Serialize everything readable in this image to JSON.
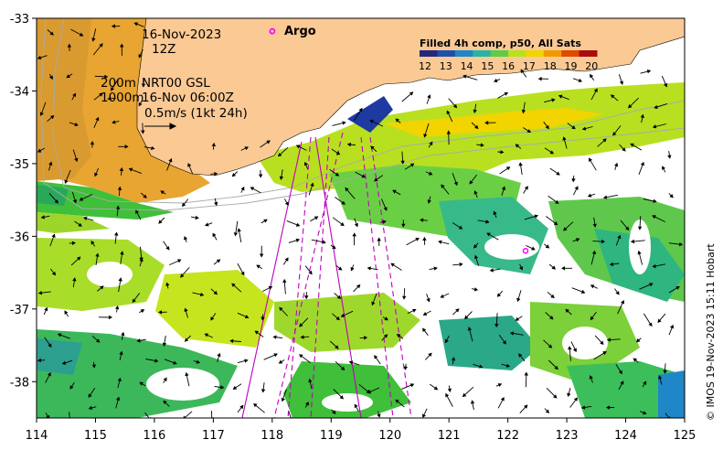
{
  "annotations": {
    "date": "16-Nov-2023",
    "time": "12Z",
    "depth_200": "200m",
    "depth_1000": "1000m",
    "product": "NRT00 GSL",
    "product_time": "16-Nov 06:00Z",
    "vector_scale": "0.5m/s (1kt 24h)"
  },
  "argo_label": "Argo",
  "credit": "© IMOS 19-Nov-2023 15:11 Hobart",
  "colorbar": {
    "title": "Filled 4h comp, p50, All Sats",
    "ticks": [
      "12",
      "13",
      "14",
      "15",
      "16",
      "17",
      "18",
      "19",
      "20"
    ],
    "colors": [
      "#23287d",
      "#1e50a8",
      "#1f86c8",
      "#27b4a6",
      "#5fcb48",
      "#b7e11d",
      "#f2d400",
      "#f19a00",
      "#dd4a00",
      "#a80c0c"
    ]
  },
  "colors": {
    "land": "#fac994",
    "coast_warm": "#e0a030",
    "ocean": "#ffffff",
    "track": "#c000c0",
    "argo": "#ff00ff"
  },
  "axes": {
    "lon_ticks": [
      "114",
      "115",
      "116",
      "117",
      "118",
      "119",
      "120",
      "121",
      "122",
      "123",
      "124",
      "125"
    ],
    "lat_ticks": [
      "-33",
      "-34",
      "-35",
      "-36",
      "-37",
      "-38"
    ]
  },
  "chart_data": {
    "type": "map",
    "xlim": [
      114,
      125
    ],
    "ylim": [
      -38.5,
      -33
    ],
    "argo_floats": [
      {
        "lon": 118.0,
        "lat": -33.18
      },
      {
        "lon": 122.3,
        "lat": -36.2
      }
    ]
  }
}
